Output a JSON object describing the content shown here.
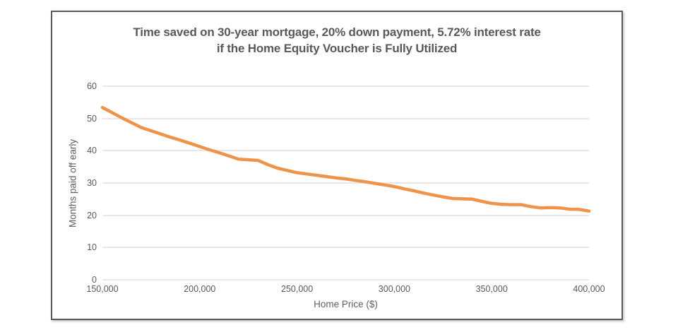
{
  "panel": {
    "title_line1": "Time saved on 30-year mortgage, 20% down payment, 5.72% interest rate",
    "title_line2": "if the Home Equity Voucher is Fully Utilized"
  },
  "colors": {
    "line": "#ED944A",
    "title_text": "#58595b",
    "axis_text": "#595959",
    "gridline": "#e8e8e8",
    "panel_border": "#58595b"
  },
  "chart_data": {
    "type": "line",
    "title": "Time saved on 30-year mortgage, 20% down payment, 5.72% interest rate if the Home Equity Voucher is Fully Utilized",
    "xlabel": "Home Price ($)",
    "ylabel": "Months paid off early",
    "xlim": [
      150000,
      400000
    ],
    "ylim": [
      0,
      60
    ],
    "grid": "horizontal-only",
    "legend": "none",
    "y_ticks": [
      0,
      10,
      20,
      30,
      40,
      50,
      60
    ],
    "x_ticks": [
      {
        "value": 150000,
        "label": "150,000"
      },
      {
        "value": 200000,
        "label": "200,000"
      },
      {
        "value": 250000,
        "label": "250,000"
      },
      {
        "value": 300000,
        "label": "300,000"
      },
      {
        "value": 350000,
        "label": "350,000"
      },
      {
        "value": 400000,
        "label": "400,000"
      }
    ],
    "series": [
      {
        "name": "Months paid off early",
        "color": "#ED944A",
        "x": [
          150000,
          155000,
          160000,
          165000,
          170000,
          175000,
          180000,
          185000,
          190000,
          195000,
          200000,
          205000,
          210000,
          215000,
          220000,
          225000,
          230000,
          235000,
          240000,
          245000,
          250000,
          255000,
          260000,
          265000,
          270000,
          275000,
          280000,
          285000,
          290000,
          295000,
          300000,
          305000,
          310000,
          315000,
          320000,
          325000,
          330000,
          335000,
          340000,
          345000,
          350000,
          355000,
          360000,
          365000,
          370000,
          375000,
          380000,
          385000,
          390000,
          395000,
          400000
        ],
        "y": [
          53.4,
          51.8,
          50.2,
          48.7,
          47.2,
          46.2,
          45.2,
          44.2,
          43.3,
          42.3,
          41.3,
          40.3,
          39.4,
          38.4,
          37.4,
          37.2,
          37.0,
          35.7,
          34.6,
          33.9,
          33.2,
          32.8,
          32.4,
          32.0,
          31.6,
          31.3,
          30.8,
          30.4,
          29.9,
          29.4,
          28.9,
          28.2,
          27.6,
          26.9,
          26.3,
          25.7,
          25.2,
          25.1,
          25.0,
          24.3,
          23.7,
          23.4,
          23.3,
          23.3,
          22.7,
          22.3,
          22.4,
          22.3,
          21.9,
          21.8,
          21.3
        ]
      }
    ]
  }
}
